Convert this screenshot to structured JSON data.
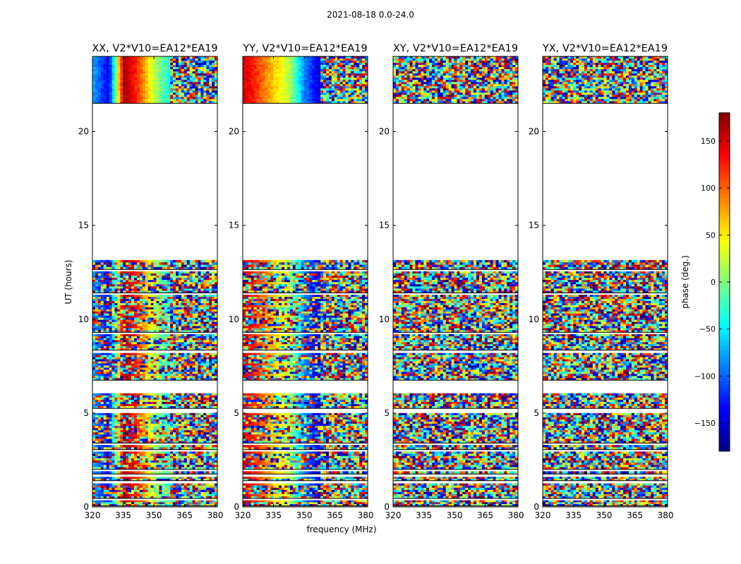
{
  "figure": {
    "suptitle": "2021-08-18 0.0-24.0"
  },
  "chart_data": {
    "type": "heatmap",
    "colormap": "jet",
    "xlabel": "frequency (MHz)",
    "ylabel": "UT (hours)",
    "xlim": [
      320,
      381
    ],
    "ylim": [
      0,
      24
    ],
    "x_ticks": [
      320,
      335,
      350,
      365,
      380
    ],
    "y_ticks": [
      0,
      5,
      10,
      15,
      20
    ],
    "colorbar": {
      "label": "phase (deg.)",
      "vmin": -180,
      "vmax": 180,
      "ticks": [
        -150,
        -100,
        -50,
        0,
        50,
        100,
        150
      ],
      "tick_labels": [
        "−150",
        "−100",
        "−50",
        "0",
        "50",
        "100",
        "150"
      ]
    },
    "data_time_blocks_hours": [
      [
        0.05,
        0.35
      ],
      [
        0.45,
        1.25
      ],
      [
        1.4,
        1.6
      ],
      [
        1.75,
        1.9
      ],
      [
        2.0,
        2.95
      ],
      [
        3.05,
        3.3
      ],
      [
        3.4,
        5.0
      ],
      [
        5.25,
        6.05
      ],
      [
        6.75,
        8.2
      ],
      [
        8.35,
        9.2
      ],
      [
        9.3,
        11.3
      ],
      [
        11.4,
        12.55
      ],
      [
        12.65,
        13.15
      ],
      [
        21.5,
        24.0
      ]
    ],
    "panels": [
      {
        "title": "XX, V2*V10=EA12*EA19",
        "coherent_block_gradient": [
          -80,
          -140,
          170,
          110,
          20,
          -40
        ],
        "noise": "mixed"
      },
      {
        "title": "YY, V2*V10=EA12*EA19",
        "coherent_block_gradient": [
          150,
          110,
          60,
          20,
          -90,
          -150
        ],
        "noise": "mixed"
      },
      {
        "title": "XY, V2*V10=EA12*EA19",
        "coherent_block_gradient": null,
        "noise": "random"
      },
      {
        "title": "YX, V2*V10=EA12*EA19",
        "coherent_block_gradient": null,
        "noise": "random"
      }
    ]
  }
}
